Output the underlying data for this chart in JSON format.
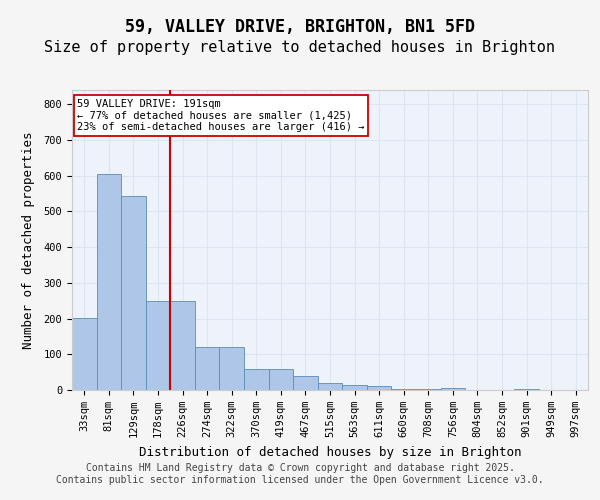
{
  "title": "59, VALLEY DRIVE, BRIGHTON, BN1 5FD",
  "subtitle": "Size of property relative to detached houses in Brighton",
  "xlabel": "Distribution of detached houses by size in Brighton",
  "ylabel": "Number of detached properties",
  "categories": [
    "33sqm",
    "81sqm",
    "129sqm",
    "178sqm",
    "226sqm",
    "274sqm",
    "322sqm",
    "370sqm",
    "419sqm",
    "467sqm",
    "515sqm",
    "563sqm",
    "611sqm",
    "660sqm",
    "708sqm",
    "756sqm",
    "804sqm",
    "852sqm",
    "901sqm",
    "949sqm",
    "997sqm"
  ],
  "values": [
    203,
    606,
    542,
    250,
    248,
    120,
    120,
    60,
    58,
    38,
    20,
    15,
    10,
    3,
    2,
    6,
    1,
    0,
    4,
    0,
    1
  ],
  "bar_color": "#aec6e8",
  "bar_edge_color": "#5b8db8",
  "grid_color": "#dce6f0",
  "background_color": "#eef2fa",
  "vline_color": "#cc0000",
  "annotation_text": "59 VALLEY DRIVE: 191sqm\n← 77% of detached houses are smaller (1,425)\n23% of semi-detached houses are larger (416) →",
  "annotation_box_color": "#ffffff",
  "annotation_box_edge": "#cc0000",
  "ylim": [
    0,
    840
  ],
  "yticks": [
    0,
    100,
    200,
    300,
    400,
    500,
    600,
    700,
    800
  ],
  "footer_text": "Contains HM Land Registry data © Crown copyright and database right 2025.\nContains public sector information licensed under the Open Government Licence v3.0.",
  "title_fontsize": 12,
  "subtitle_fontsize": 11,
  "label_fontsize": 9,
  "tick_fontsize": 7.5,
  "footer_fontsize": 7
}
